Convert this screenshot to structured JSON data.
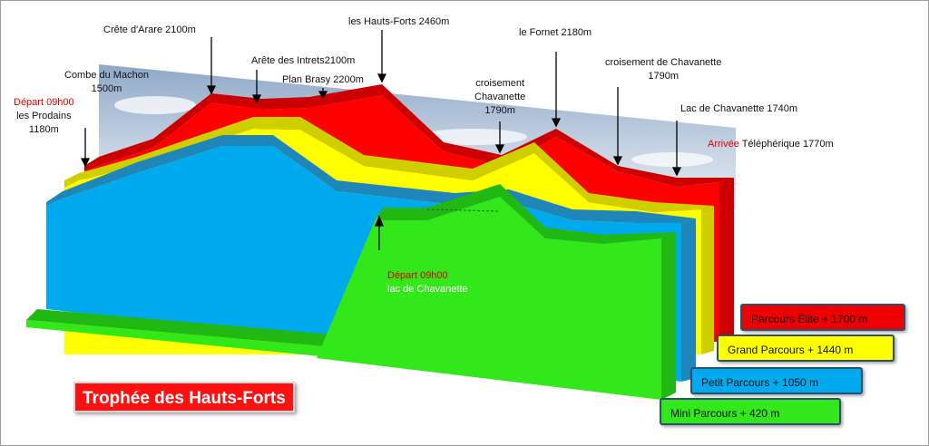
{
  "title": "Trophée des Hauts-Forts",
  "colors": {
    "elite": "#ee0000",
    "grand": "#ffff00",
    "petit": "#00aaee",
    "mini": "#33e81a",
    "title_bg": "#ff1010"
  },
  "chart_data": {
    "type": "area",
    "x": [
      0,
      1,
      2,
      3,
      4,
      5,
      6,
      7,
      8,
      9,
      10,
      11
    ],
    "series": [
      {
        "name": "Parcours Élite + 1700  m",
        "values": [
          1180,
          1500,
          2100,
          2100,
          2200,
          2460,
          1790,
          2180,
          1790,
          1740,
          1770,
          1770
        ]
      },
      {
        "name": "Grand Parcours  + 1440  m",
        "values": [
          1180,
          1500,
          2000,
          2000,
          1800,
          1700,
          1600,
          2000,
          1600,
          1550,
          1550,
          1550
        ]
      },
      {
        "name": "Petit Parcours + 1050  m",
        "values": [
          1180,
          1500,
          1800,
          1850,
          1600,
          1450,
          1450,
          1450,
          1350,
          1300,
          1300,
          1300
        ]
      },
      {
        "name": "Mini Parcours + 420  m",
        "values": [
          null,
          null,
          null,
          null,
          null,
          null,
          1790,
          2000,
          1450,
          1450,
          1450,
          1450
        ]
      }
    ]
  },
  "annotations": [
    {
      "line1": "Départ 09h00",
      "line2": "les Prodains",
      "line3": "1180m",
      "first_red": true
    },
    {
      "line1": "Combe du Machon",
      "line2": "1500m",
      "line3": ""
    },
    {
      "line1": "Crête d'Arare 2100m",
      "line2": "",
      "line3": ""
    },
    {
      "line1": "Arête des Intrets2100m",
      "line2": "",
      "line3": ""
    },
    {
      "line1": "Plan Brasy  2200m",
      "line2": "",
      "line3": ""
    },
    {
      "line1": "les Hauts-Forts  2460m",
      "line2": "",
      "line3": ""
    },
    {
      "line1": "croisement",
      "line2": "Chavanette",
      "line3": "1790m"
    },
    {
      "line1": "le Fornet 2180m",
      "line2": "",
      "line3": ""
    },
    {
      "line1": "croisement de Chavanette",
      "line2": "1790m",
      "line3": ""
    },
    {
      "line1": "Lac de Chavanette  1740m",
      "line2": "",
      "line3": ""
    },
    {
      "prefix": "Arrivée",
      "line1": " Téléphérique 1770m"
    },
    {
      "line1": "Départ 09h00",
      "line2": "lac de Chavanette"
    }
  ]
}
